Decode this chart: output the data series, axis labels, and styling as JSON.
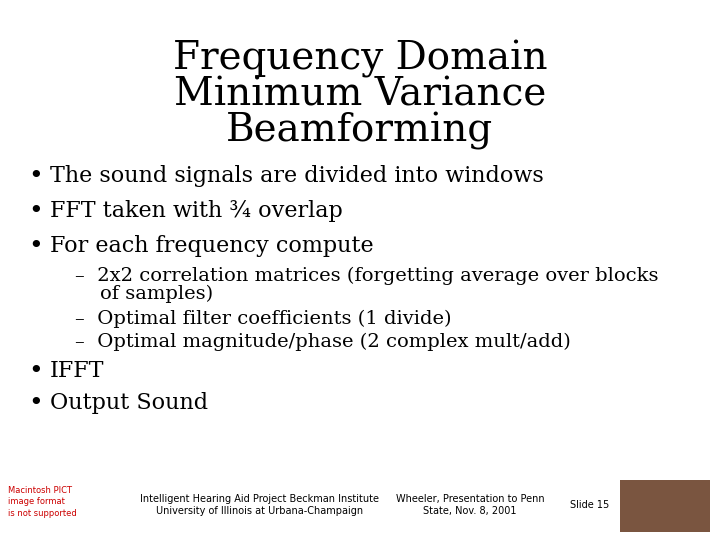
{
  "title_line1": "Frequency Domain",
  "title_line2": "Minimum Variance",
  "title_line3": "Beamforming",
  "title_fontsize": 28,
  "title_font": "serif",
  "bg_color": "#ffffff",
  "text_color": "#000000",
  "bullet_items": [
    "The sound signals are divided into windows",
    "FFT taken with ¾ overlap",
    "For each frequency compute"
  ],
  "sub_item1_line1": "–  2x2 correlation matrices (forgetting average over blocks",
  "sub_item1_line2": "    of samples)",
  "sub_item2": "–  Optimal filter coefficients (1 divide)",
  "sub_item3": "–  Optimal magnitude/phase (2 complex mult/add)",
  "bullet_items2": [
    "IFFT",
    "Output Sound"
  ],
  "footer_left_red": "Macintosh PICT\nimage format\nis not supported",
  "footer_center_left": "Intelligent Hearing Aid Project Beckman Institute\nUniversity of Illinois at Urbana-Champaign",
  "footer_center_right": "Wheeler, Presentation to Penn\nState, Nov. 8, 2001",
  "footer_right": "Slide 15",
  "main_fontsize": 16,
  "sub_fontsize": 14,
  "footer_fontsize": 7,
  "face_color": "#7a5540"
}
